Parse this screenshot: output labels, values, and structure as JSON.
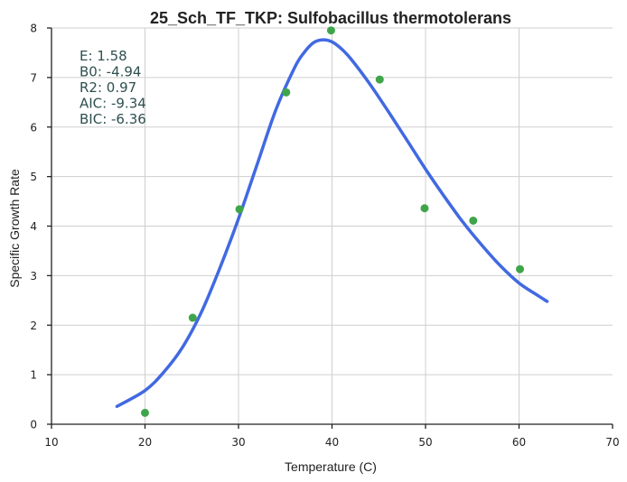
{
  "chart_data": {
    "type": "scatter",
    "title": "25_Sch_TF_TKP: Sulfobacillus thermotolerans",
    "xlabel": "Temperature (C)",
    "ylabel": "Specific Growth Rate",
    "xlim": [
      10,
      70
    ],
    "ylim": [
      0,
      8
    ],
    "xticks": [
      10,
      20,
      30,
      40,
      50,
      60,
      70
    ],
    "yticks": [
      0,
      1,
      2,
      3,
      4,
      5,
      6,
      7,
      8
    ],
    "grid": true,
    "points": {
      "color": "#3fa54a",
      "x": [
        20,
        25.1,
        30.1,
        35.1,
        39.9,
        45.1,
        49.9,
        55.1,
        60.1
      ],
      "y": [
        0.23,
        2.15,
        4.34,
        6.7,
        7.95,
        6.96,
        4.36,
        4.11,
        3.13
      ]
    },
    "fit_curve": {
      "color": "#4169e1",
      "x": [
        17,
        20,
        22,
        24,
        26,
        28,
        30,
        32,
        34,
        36,
        37,
        38,
        39,
        40,
        41,
        42,
        44,
        46,
        48,
        50,
        52,
        54,
        56,
        58,
        60,
        62,
        63
      ],
      "y": [
        0.36,
        0.68,
        1.05,
        1.55,
        2.25,
        3.15,
        4.15,
        5.25,
        6.35,
        7.2,
        7.5,
        7.7,
        7.76,
        7.72,
        7.58,
        7.38,
        6.88,
        6.32,
        5.74,
        5.15,
        4.6,
        4.08,
        3.62,
        3.2,
        2.85,
        2.6,
        2.48
      ]
    },
    "annotations": [
      "E:  1.58",
      "B0:  -4.94",
      "R2:  0.97",
      "AIC: -9.34",
      "BIC: -6.36"
    ]
  }
}
